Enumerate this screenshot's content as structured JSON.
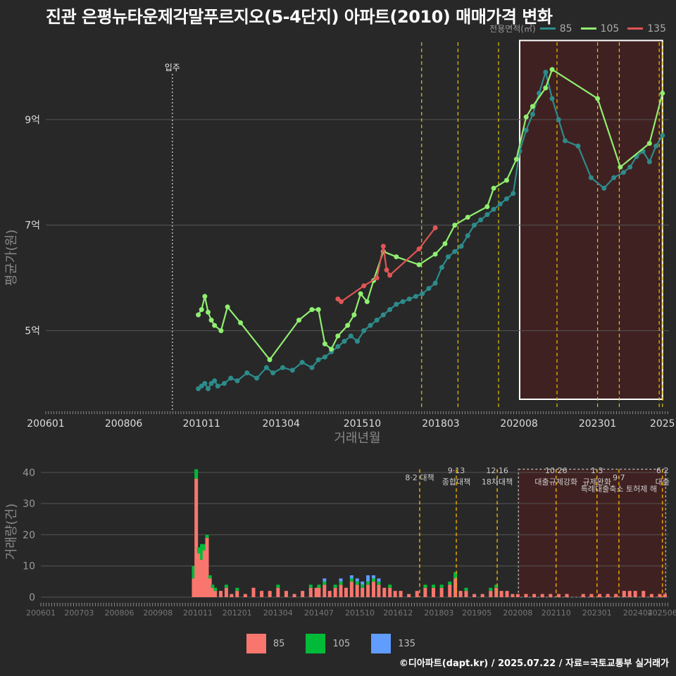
{
  "title": "진관 은평뉴타운제각말푸르지오(5-4단지) 아파트(2010) 매매가격 변화",
  "credit": "©디아파트(dapt.kr) / 2025.07.22 / 자료=국토교통부 실거래가",
  "legend": {
    "title": "전용면적(㎡)",
    "items": [
      {
        "label": "85",
        "line_color": "#2e8b8b",
        "bar_color": "#f8766d"
      },
      {
        "label": "105",
        "line_color": "#90ee70",
        "bar_color": "#00ba38"
      },
      {
        "label": "135",
        "line_color": "#e05555",
        "bar_color": "#619cff"
      }
    ]
  },
  "chart_data": [
    {
      "type": "line",
      "title": "평균가격 추이",
      "xlabel": "거래년월",
      "ylabel": "평균가(원)",
      "xlim": [
        2006.0,
        2025.2
      ],
      "ylim": [
        3.5,
        10.6
      ],
      "y_unit": "억",
      "x_ticks": [
        {
          "label": "200601",
          "x": 2006.0
        },
        {
          "label": "200806",
          "x": 2008.4
        },
        {
          "label": "201011",
          "x": 2010.8
        },
        {
          "label": "201304",
          "x": 2013.25
        },
        {
          "label": "201510",
          "x": 2015.75
        },
        {
          "label": "201803",
          "x": 2018.17
        },
        {
          "label": "202008",
          "x": 2020.58
        },
        {
          "label": "202301",
          "x": 2023.0
        },
        {
          "label": "2025",
          "x": 2025.0
        }
      ],
      "y_ticks": [
        {
          "label": "5억",
          "y": 5
        },
        {
          "label": "7억",
          "y": 7
        },
        {
          "label": "9억",
          "y": 9
        }
      ],
      "annotations": [
        {
          "label": "입주",
          "x": 2009.9,
          "style": "dotted"
        }
      ],
      "policy_lines": [
        2017.58,
        2018.7,
        2019.95,
        2021.75,
        2023.0,
        2023.67,
        2024.9,
        2025.0
      ],
      "highlight": {
        "x0": 2020.6,
        "x1": 2025.0,
        "y0": 3.7,
        "y1": 10.5
      },
      "series": [
        {
          "name": "85",
          "x": [
            2010.7,
            2010.8,
            2010.9,
            2011.0,
            2011.1,
            2011.2,
            2011.3,
            2011.5,
            2011.7,
            2011.9,
            2012.2,
            2012.5,
            2012.8,
            2013.0,
            2013.3,
            2013.6,
            2013.9,
            2014.2,
            2014.4,
            2014.6,
            2014.8,
            2015.0,
            2015.2,
            2015.4,
            2015.6,
            2015.8,
            2016.0,
            2016.2,
            2016.4,
            2016.6,
            2016.8,
            2017.0,
            2017.2,
            2017.4,
            2017.6,
            2017.8,
            2018.0,
            2018.2,
            2018.4,
            2018.6,
            2018.8,
            2019.0,
            2019.2,
            2019.4,
            2019.6,
            2019.8,
            2020.0,
            2020.2,
            2020.4,
            2020.6,
            2020.8,
            2021.0,
            2021.2,
            2021.4,
            2021.6,
            2021.8,
            2022.0,
            2022.4,
            2022.8,
            2023.2,
            2023.5,
            2023.8,
            2024.0,
            2024.2,
            2024.4,
            2024.6,
            2024.8,
            2025.0
          ],
          "y": [
            3.9,
            3.95,
            4.0,
            3.9,
            4.0,
            4.05,
            3.95,
            4.0,
            4.1,
            4.05,
            4.2,
            4.1,
            4.3,
            4.2,
            4.3,
            4.25,
            4.4,
            4.3,
            4.45,
            4.5,
            4.6,
            4.7,
            4.8,
            4.9,
            4.8,
            5.0,
            5.1,
            5.2,
            5.3,
            5.4,
            5.5,
            5.55,
            5.6,
            5.65,
            5.7,
            5.8,
            5.9,
            6.2,
            6.4,
            6.5,
            6.6,
            6.8,
            7.0,
            7.1,
            7.2,
            7.3,
            7.4,
            7.5,
            7.6,
            8.4,
            8.8,
            9.1,
            9.5,
            9.9,
            9.4,
            9.0,
            8.6,
            8.5,
            7.9,
            7.7,
            7.9,
            8.0,
            8.1,
            8.3,
            8.4,
            8.2,
            8.5,
            8.7
          ]
        },
        {
          "name": "105",
          "x": [
            2010.7,
            2010.8,
            2010.9,
            2011.0,
            2011.1,
            2011.2,
            2011.4,
            2011.6,
            2012.0,
            2012.9,
            2013.8,
            2014.2,
            2014.4,
            2014.6,
            2014.8,
            2015.0,
            2015.3,
            2015.5,
            2015.7,
            2015.9,
            2016.1,
            2016.4,
            2016.8,
            2017.5,
            2018.0,
            2018.3,
            2018.6,
            2019.0,
            2019.6,
            2019.8,
            2020.2,
            2020.5,
            2020.8,
            2021.0,
            2021.4,
            2021.6,
            2023.0,
            2023.7,
            2024.6,
            2025.0
          ],
          "y": [
            5.3,
            5.4,
            5.65,
            5.35,
            5.2,
            5.1,
            5.0,
            5.45,
            5.15,
            4.45,
            5.2,
            5.4,
            5.4,
            4.75,
            4.65,
            4.9,
            5.1,
            5.3,
            5.7,
            5.55,
            5.95,
            6.5,
            6.4,
            6.25,
            6.45,
            6.65,
            7.0,
            7.15,
            7.35,
            7.7,
            7.85,
            8.25,
            9.05,
            9.25,
            9.6,
            9.95,
            9.4,
            8.1,
            8.55,
            9.5
          ]
        },
        {
          "name": "135",
          "x": [
            2015.0,
            2015.1,
            2015.8,
            2016.2,
            2016.4,
            2016.5,
            2016.6,
            2017.5,
            2018.0
          ],
          "y": [
            5.6,
            5.55,
            5.85,
            6.0,
            6.6,
            6.15,
            6.05,
            6.55,
            6.95
          ]
        }
      ]
    },
    {
      "type": "bar",
      "title": "거래량",
      "xlabel": "",
      "ylabel": "거래량(건)",
      "xlim": [
        2006.0,
        2025.2
      ],
      "ylim": [
        0,
        42
      ],
      "y_ticks": [
        0,
        10,
        20,
        30,
        40
      ],
      "x_ticks": [
        {
          "label": "200601",
          "x": 2006.0
        },
        {
          "label": "200703",
          "x": 2007.17
        },
        {
          "label": "200806",
          "x": 2008.4
        },
        {
          "label": "200908",
          "x": 2009.58
        },
        {
          "label": "201011",
          "x": 2010.8
        },
        {
          "label": "201201",
          "x": 2012.0
        },
        {
          "label": "201304",
          "x": 2013.25
        },
        {
          "label": "201407",
          "x": 2014.5
        },
        {
          "label": "201510",
          "x": 2015.75
        },
        {
          "label": "201612",
          "x": 2016.92
        },
        {
          "label": "201803",
          "x": 2018.17
        },
        {
          "label": "201905",
          "x": 2019.33
        },
        {
          "label": "202008",
          "x": 2020.58
        },
        {
          "label": "202110",
          "x": 2021.75
        },
        {
          "label": "202301",
          "x": 2023.0
        },
        {
          "label": "202404",
          "x": 2024.25
        },
        {
          "label": "202506",
          "x": 2025.0
        }
      ],
      "policies": [
        {
          "x": 2017.58,
          "date": "",
          "label": "8·2 대책",
          "row": 1
        },
        {
          "x": 2018.7,
          "date": "9·13",
          "label": "종합대책",
          "row": 0
        },
        {
          "x": 2019.95,
          "date": "12·16",
          "label": "18차대책",
          "row": 0
        },
        {
          "x": 2021.75,
          "date": "10·26",
          "label": "대출규제강화",
          "row": 0
        },
        {
          "x": 2023.0,
          "date": "1·3",
          "label": "규제완화",
          "row": 0
        },
        {
          "x": 2023.67,
          "date": "9·7",
          "label": "특례대출축소 토허제 해",
          "row": 1
        },
        {
          "x": 2025.0,
          "date": "6·2",
          "label": "대출",
          "row": 0
        }
      ],
      "highlight": {
        "x0": 2020.6,
        "x1": 2025.1
      },
      "x": [
        2010.67,
        2010.75,
        2010.83,
        2010.92,
        2011.0,
        2011.08,
        2011.17,
        2011.25,
        2011.33,
        2011.5,
        2011.67,
        2011.83,
        2012.0,
        2012.25,
        2012.5,
        2012.75,
        2013.0,
        2013.25,
        2013.5,
        2013.75,
        2014.0,
        2014.25,
        2014.42,
        2014.5,
        2014.67,
        2014.83,
        2015.0,
        2015.17,
        2015.33,
        2015.5,
        2015.67,
        2015.83,
        2016.0,
        2016.17,
        2016.33,
        2016.5,
        2016.67,
        2016.83,
        2017.0,
        2017.25,
        2017.5,
        2017.75,
        2018.0,
        2018.25,
        2018.5,
        2018.67,
        2018.83,
        2019.0,
        2019.25,
        2019.5,
        2019.75,
        2019.92,
        2020.08,
        2020.25,
        2020.42,
        2020.58,
        2020.83,
        2021.08,
        2021.33,
        2021.58,
        2021.83,
        2022.08,
        2022.33,
        2022.58,
        2022.83,
        2023.08,
        2023.33,
        2023.58,
        2023.83,
        2024.0,
        2024.17,
        2024.42,
        2024.67,
        2024.92,
        2025.08
      ],
      "series": [
        {
          "name": "85",
          "values": [
            6,
            38,
            14,
            12,
            15,
            19,
            6,
            3,
            2,
            2,
            3,
            1,
            2,
            1,
            3,
            2,
            2,
            3,
            2,
            1,
            2,
            3,
            3,
            3,
            4,
            2,
            3,
            4,
            3,
            5,
            4,
            3,
            4,
            5,
            4,
            3,
            3,
            2,
            2,
            1,
            2,
            3,
            3,
            3,
            4,
            6,
            2,
            2,
            1,
            1,
            2,
            3,
            2,
            2,
            1,
            1,
            1,
            1,
            1,
            1,
            1,
            1,
            0,
            1,
            1,
            1,
            1,
            1,
            2,
            2,
            2,
            2,
            1,
            1,
            1
          ]
        },
        {
          "name": "105",
          "values": [
            4,
            3,
            2,
            5,
            2,
            1,
            1,
            1,
            1,
            0,
            1,
            0,
            1,
            0,
            0,
            0,
            0,
            1,
            0,
            0,
            0,
            1,
            0,
            1,
            1,
            0,
            1,
            1,
            0,
            1,
            1,
            1,
            1,
            1,
            1,
            0,
            1,
            0,
            0,
            0,
            0,
            1,
            1,
            1,
            1,
            2,
            0,
            1,
            0,
            0,
            1,
            1,
            0,
            0,
            0,
            0,
            0,
            0,
            0,
            0,
            0,
            0,
            0,
            0,
            0,
            0,
            0,
            0,
            0,
            0,
            0,
            0,
            0,
            0,
            0
          ]
        },
        {
          "name": "135",
          "values": [
            0,
            0,
            0,
            0,
            0,
            0,
            0,
            0,
            0,
            0,
            0,
            0,
            0,
            0,
            0,
            0,
            0,
            0,
            0,
            0,
            0,
            0,
            0,
            0,
            1,
            0,
            0,
            1,
            0,
            1,
            1,
            1,
            2,
            1,
            1,
            0,
            0,
            0,
            0,
            0,
            0,
            0,
            0,
            0,
            0,
            0,
            0,
            0,
            0,
            0,
            0,
            0,
            0,
            0,
            0,
            0,
            0,
            0,
            0,
            0,
            0,
            0,
            0,
            0,
            0,
            0,
            0,
            0,
            0,
            0,
            0,
            0,
            0,
            0,
            0
          ]
        }
      ]
    }
  ]
}
